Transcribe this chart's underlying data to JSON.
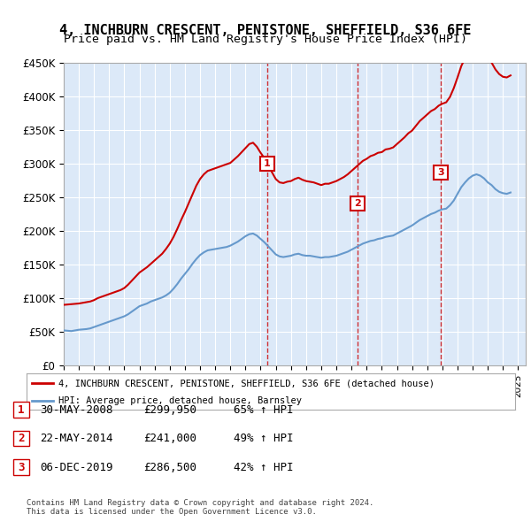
{
  "title": "4, INCHBURN CRESCENT, PENISTONE, SHEFFIELD, S36 6FE",
  "subtitle": "Price paid vs. HM Land Registry's House Price Index (HPI)",
  "ylabel_ticks": [
    "£0",
    "£50K",
    "£100K",
    "£150K",
    "£200K",
    "£250K",
    "£300K",
    "£350K",
    "£400K",
    "£450K"
  ],
  "ytick_values": [
    0,
    50000,
    100000,
    150000,
    200000,
    250000,
    300000,
    350000,
    400000,
    450000
  ],
  "ylim": [
    0,
    450000
  ],
  "xlim_start": 1995,
  "xlim_end": 2025.5,
  "background_color": "#dce9f8",
  "plot_bg_color": "#dce9f8",
  "red_line_color": "#cc0000",
  "blue_line_color": "#6699cc",
  "transaction_marker_color": "#cc0000",
  "sale_points": [
    {
      "year": 2008.41,
      "price": 299950,
      "label": "1"
    },
    {
      "year": 2014.39,
      "price": 241000,
      "label": "2"
    },
    {
      "year": 2019.92,
      "price": 286500,
      "label": "3"
    }
  ],
  "table_rows": [
    {
      "num": "1",
      "date": "30-MAY-2008",
      "price": "£299,950",
      "hpi": "65% ↑ HPI"
    },
    {
      "num": "2",
      "date": "22-MAY-2014",
      "price": "£241,000",
      "hpi": "49% ↑ HPI"
    },
    {
      "num": "3",
      "date": "06-DEC-2019",
      "price": "£286,500",
      "hpi": "42% ↑ HPI"
    }
  ],
  "legend_entries": [
    "4, INCHBURN CRESCENT, PENISTONE, SHEFFIELD, S36 6FE (detached house)",
    "HPI: Average price, detached house, Barnsley"
  ],
  "footer": "Contains HM Land Registry data © Crown copyright and database right 2024.\nThis data is licensed under the Open Government Licence v3.0.",
  "hpi_data_x": [
    1995.0,
    1995.25,
    1995.5,
    1995.75,
    1996.0,
    1996.25,
    1996.5,
    1996.75,
    1997.0,
    1997.25,
    1997.5,
    1997.75,
    1998.0,
    1998.25,
    1998.5,
    1998.75,
    1999.0,
    1999.25,
    1999.5,
    1999.75,
    2000.0,
    2000.25,
    2000.5,
    2000.75,
    2001.0,
    2001.25,
    2001.5,
    2001.75,
    2002.0,
    2002.25,
    2002.5,
    2002.75,
    2003.0,
    2003.25,
    2003.5,
    2003.75,
    2004.0,
    2004.25,
    2004.5,
    2004.75,
    2005.0,
    2005.25,
    2005.5,
    2005.75,
    2006.0,
    2006.25,
    2006.5,
    2006.75,
    2007.0,
    2007.25,
    2007.5,
    2007.75,
    2008.0,
    2008.25,
    2008.5,
    2008.75,
    2009.0,
    2009.25,
    2009.5,
    2009.75,
    2010.0,
    2010.25,
    2010.5,
    2010.75,
    2011.0,
    2011.25,
    2011.5,
    2011.75,
    2012.0,
    2012.25,
    2012.5,
    2012.75,
    2013.0,
    2013.25,
    2013.5,
    2013.75,
    2014.0,
    2014.25,
    2014.5,
    2014.75,
    2015.0,
    2015.25,
    2015.5,
    2015.75,
    2016.0,
    2016.25,
    2016.5,
    2016.75,
    2017.0,
    2017.25,
    2017.5,
    2017.75,
    2018.0,
    2018.25,
    2018.5,
    2018.75,
    2019.0,
    2019.25,
    2019.5,
    2019.75,
    2020.0,
    2020.25,
    2020.5,
    2020.75,
    2021.0,
    2021.25,
    2021.5,
    2021.75,
    2022.0,
    2022.25,
    2022.5,
    2022.75,
    2023.0,
    2023.25,
    2023.5,
    2023.75,
    2024.0,
    2024.25,
    2024.5
  ],
  "hpi_values": [
    52000,
    51500,
    51000,
    52000,
    53000,
    53500,
    54000,
    55000,
    57000,
    59000,
    61000,
    63000,
    65000,
    67000,
    69000,
    71000,
    73000,
    76000,
    80000,
    84000,
    88000,
    90000,
    92000,
    95000,
    97000,
    99000,
    101000,
    104000,
    108000,
    114000,
    121000,
    129000,
    136000,
    143000,
    151000,
    158000,
    164000,
    168000,
    171000,
    172000,
    173000,
    174000,
    175000,
    176000,
    178000,
    181000,
    184000,
    188000,
    192000,
    195000,
    196000,
    193000,
    188000,
    183000,
    177000,
    171000,
    165000,
    162000,
    161000,
    162000,
    163000,
    165000,
    166000,
    164000,
    163000,
    163000,
    162000,
    161000,
    160000,
    161000,
    161000,
    162000,
    163000,
    165000,
    167000,
    169000,
    172000,
    175000,
    178000,
    181000,
    183000,
    185000,
    186000,
    188000,
    189000,
    191000,
    192000,
    193000,
    196000,
    199000,
    202000,
    205000,
    208000,
    212000,
    216000,
    219000,
    222000,
    225000,
    227000,
    230000,
    232000,
    233000,
    238000,
    245000,
    255000,
    265000,
    272000,
    278000,
    282000,
    284000,
    282000,
    278000,
    272000,
    268000,
    262000,
    258000,
    256000,
    255000,
    257000
  ],
  "property_data_x": [
    1995.0,
    1995.25,
    1995.5,
    1995.75,
    1996.0,
    1996.25,
    1996.5,
    1996.75,
    1997.0,
    1997.25,
    1997.5,
    1997.75,
    1998.0,
    1998.25,
    1998.5,
    1998.75,
    1999.0,
    1999.25,
    1999.5,
    1999.75,
    2000.0,
    2000.25,
    2000.5,
    2000.75,
    2001.0,
    2001.25,
    2001.5,
    2001.75,
    2002.0,
    2002.25,
    2002.5,
    2002.75,
    2003.0,
    2003.25,
    2003.5,
    2003.75,
    2004.0,
    2004.25,
    2004.5,
    2004.75,
    2005.0,
    2005.25,
    2005.5,
    2005.75,
    2006.0,
    2006.25,
    2006.5,
    2006.75,
    2007.0,
    2007.25,
    2007.5,
    2007.75,
    2008.0,
    2008.25,
    2008.5,
    2008.75,
    2009.0,
    2009.25,
    2009.5,
    2009.75,
    2010.0,
    2010.25,
    2010.5,
    2010.75,
    2011.0,
    2011.25,
    2011.5,
    2011.75,
    2012.0,
    2012.25,
    2012.5,
    2012.75,
    2013.0,
    2013.25,
    2013.5,
    2013.75,
    2014.0,
    2014.25,
    2014.5,
    2014.75,
    2015.0,
    2015.25,
    2015.5,
    2015.75,
    2016.0,
    2016.25,
    2016.5,
    2016.75,
    2017.0,
    2017.25,
    2017.5,
    2017.75,
    2018.0,
    2018.25,
    2018.5,
    2018.75,
    2019.0,
    2019.25,
    2019.5,
    2019.75,
    2020.0,
    2020.25,
    2020.5,
    2020.75,
    2021.0,
    2021.25,
    2021.5,
    2021.75,
    2022.0,
    2022.25,
    2022.5,
    2022.75,
    2023.0,
    2023.25,
    2023.5,
    2023.75,
    2024.0,
    2024.25,
    2024.5
  ],
  "property_values": [
    90000,
    90500,
    91000,
    91500,
    92000,
    93000,
    94000,
    95000,
    97000,
    100000,
    102000,
    104000,
    106000,
    108000,
    110000,
    112000,
    115000,
    120000,
    126000,
    132000,
    138000,
    142000,
    146000,
    151000,
    156000,
    161000,
    166000,
    173000,
    181000,
    191000,
    203000,
    216000,
    228000,
    241000,
    254000,
    267000,
    277000,
    284000,
    289000,
    291000,
    293000,
    295000,
    297000,
    299000,
    301000,
    306000,
    311000,
    317000,
    323000,
    329000,
    331000,
    325000,
    316000,
    308000,
    298000,
    287000,
    277000,
    272000,
    271000,
    273000,
    274000,
    277000,
    279000,
    276000,
    274000,
    273000,
    272000,
    270000,
    268000,
    270000,
    270000,
    272000,
    274000,
    277000,
    280000,
    284000,
    289000,
    294000,
    299000,
    304000,
    307000,
    311000,
    313000,
    316000,
    317000,
    321000,
    322000,
    324000,
    329000,
    334000,
    339000,
    345000,
    349000,
    356000,
    363000,
    368000,
    373000,
    378000,
    381000,
    386000,
    389000,
    391000,
    399000,
    412000,
    428000,
    445000,
    457000,
    467000,
    474000,
    478000,
    474000,
    467000,
    457000,
    450000,
    440000,
    433000,
    429000,
    428000,
    431000
  ]
}
